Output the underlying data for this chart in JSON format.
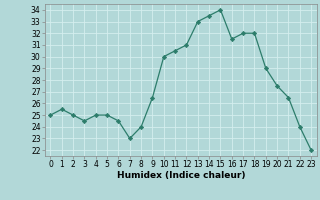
{
  "x": [
    0,
    1,
    2,
    3,
    4,
    5,
    6,
    7,
    8,
    9,
    10,
    11,
    12,
    13,
    14,
    15,
    16,
    17,
    18,
    19,
    20,
    21,
    22,
    23
  ],
  "y": [
    25.0,
    25.5,
    25.0,
    24.5,
    25.0,
    25.0,
    24.5,
    23.0,
    24.0,
    26.5,
    30.0,
    30.5,
    31.0,
    33.0,
    33.5,
    34.0,
    31.5,
    32.0,
    32.0,
    29.0,
    27.5,
    26.5,
    24.0,
    22.0
  ],
  "xlabel": "Humidex (Indice chaleur)",
  "line_color": "#2d7d6b",
  "marker_color": "#2d7d6b",
  "bg_color": "#b2d8d8",
  "grid_color": "#d4eeee",
  "xlim": [
    -0.5,
    23.5
  ],
  "ylim": [
    21.5,
    34.5
  ],
  "yticks": [
    22,
    23,
    24,
    25,
    26,
    27,
    28,
    29,
    30,
    31,
    32,
    33,
    34
  ],
  "xticks": [
    0,
    1,
    2,
    3,
    4,
    5,
    6,
    7,
    8,
    9,
    10,
    11,
    12,
    13,
    14,
    15,
    16,
    17,
    18,
    19,
    20,
    21,
    22,
    23
  ],
  "tick_fontsize": 5.5,
  "xlabel_fontsize": 6.5
}
